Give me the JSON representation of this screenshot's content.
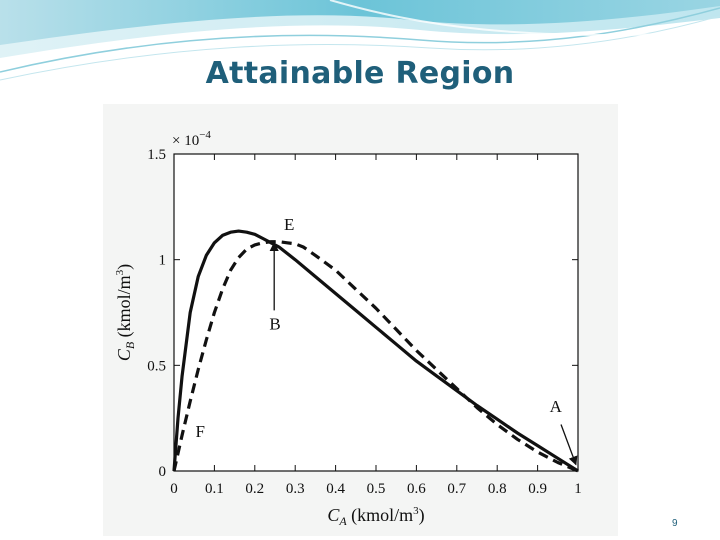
{
  "slide": {
    "title": "Attainable Region",
    "page_number": "9",
    "accent_color": "#1f5f7a"
  },
  "chart_data": {
    "type": "line",
    "title": "",
    "xlabel": {
      "symbol": "C",
      "subscript": "A",
      "unit": "(kmol/m",
      "unit_sup": "3",
      "unit_close": ")"
    },
    "ylabel": {
      "symbol": "C",
      "subscript": "B",
      "unit": "(kmol/m",
      "unit_sup": "3",
      "unit_close": ")"
    },
    "y_multiplier": {
      "base": "× 10",
      "exponent": "−4"
    },
    "xlim": [
      0,
      1
    ],
    "ylim": [
      0,
      1.5
    ],
    "x_ticks": [
      0,
      0.1,
      0.2,
      0.3,
      0.4,
      0.5,
      0.6,
      0.7,
      0.8,
      0.9,
      1
    ],
    "x_tick_labels": [
      "0",
      "0.1",
      "0.2",
      "0.3",
      "0.4",
      "0.5",
      "0.6",
      "0.7",
      "0.8",
      "0.9",
      "1"
    ],
    "y_ticks": [
      0,
      0.5,
      1,
      1.5
    ],
    "y_tick_labels": [
      "0",
      "0.5",
      "1",
      "1.5"
    ],
    "grid": false,
    "series": [
      {
        "style": "solid",
        "x": [
          0,
          0.01,
          0.02,
          0.04,
          0.06,
          0.08,
          0.1,
          0.12,
          0.14,
          0.16,
          0.18,
          0.2,
          0.22,
          0.24,
          0.26,
          0.3,
          0.35,
          0.4,
          0.45,
          0.5,
          0.55,
          0.6,
          0.65,
          0.7,
          0.75,
          0.8,
          0.85,
          0.9,
          0.95,
          1
        ],
        "y": [
          0,
          0.25,
          0.45,
          0.75,
          0.92,
          1.02,
          1.08,
          1.115,
          1.13,
          1.135,
          1.13,
          1.12,
          1.1,
          1.08,
          1.06,
          1.0,
          0.92,
          0.84,
          0.76,
          0.68,
          0.6,
          0.52,
          0.45,
          0.38,
          0.31,
          0.245,
          0.18,
          0.12,
          0.06,
          0
        ]
      },
      {
        "style": "dashed",
        "x": [
          0,
          0.02,
          0.04,
          0.06,
          0.08,
          0.1,
          0.12,
          0.14,
          0.16,
          0.18,
          0.2,
          0.22,
          0.24,
          0.26,
          0.28,
          0.3,
          0.32,
          0.35,
          0.4,
          0.45,
          0.5,
          0.55,
          0.6,
          0.65,
          0.7,
          0.75,
          0.8,
          0.85,
          0.9,
          0.95,
          1
        ],
        "y": [
          0,
          0.17,
          0.33,
          0.48,
          0.62,
          0.75,
          0.86,
          0.95,
          1.01,
          1.05,
          1.07,
          1.08,
          1.085,
          1.085,
          1.08,
          1.075,
          1.06,
          1.02,
          0.95,
          0.86,
          0.77,
          0.67,
          0.57,
          0.48,
          0.39,
          0.3,
          0.22,
          0.15,
          0.09,
          0.04,
          0
        ]
      }
    ],
    "annotations": [
      {
        "label": "E",
        "x": 0.285,
        "y": 1.14
      },
      {
        "label": "B",
        "x": 0.25,
        "y": 0.67
      },
      {
        "label": "A",
        "x": 0.945,
        "y": 0.28
      },
      {
        "label": "F",
        "x": 0.065,
        "y": 0.16
      }
    ],
    "arrows": [
      {
        "x1": 0.248,
        "y1": 0.76,
        "x2": 0.248,
        "y2": 1.08
      },
      {
        "x1": 0.958,
        "y1": 0.22,
        "x2": 0.995,
        "y2": 0.03
      }
    ]
  }
}
